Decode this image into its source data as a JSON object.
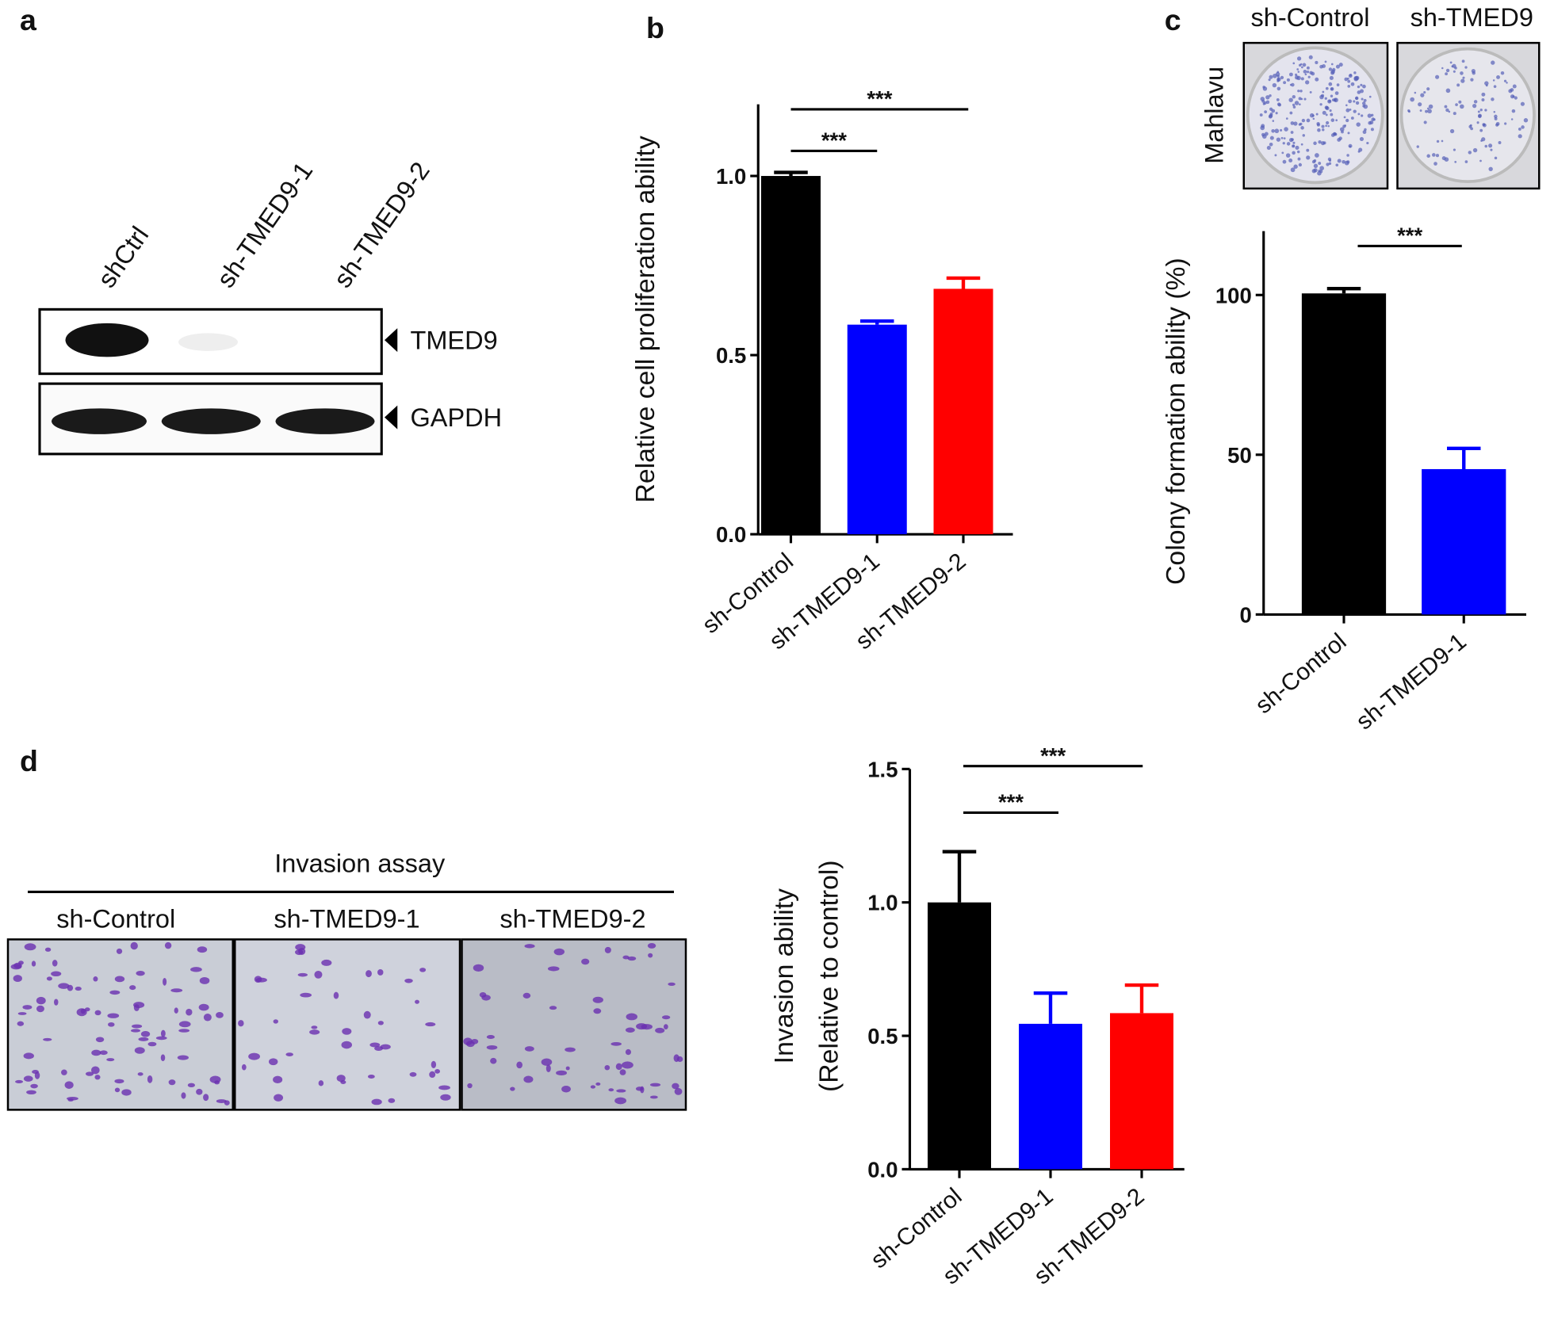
{
  "panel_labels": [
    "a",
    "b",
    "c",
    "d"
  ],
  "blot": {
    "lanes": [
      "shCtrl",
      "sh-TMED9-1",
      "sh-TMED9-2"
    ],
    "bands": [
      "TMED9",
      "GAPDH"
    ]
  },
  "colony": {
    "row_label": "Mahlavu",
    "columns": [
      "sh-Control",
      "sh-TMED9"
    ]
  },
  "invasion": {
    "title": "Invasion assay",
    "columns": [
      "sh-Control",
      "sh-TMED9-1",
      "sh-TMED9-2"
    ]
  },
  "chart_data": [
    {
      "type": "bar",
      "ylabel": [
        "Relative cell proliferation ability"
      ],
      "categories": [
        "sh-Control",
        "sh-TMED9-1",
        "sh-TMED9-2"
      ],
      "values": [
        1.0,
        0.585,
        0.685
      ],
      "errors": [
        0.01,
        0.01,
        0.03
      ],
      "colors": [
        "#000000",
        "#0000ff",
        "#ff0000"
      ],
      "ylim": [
        0,
        1.2
      ],
      "yticks": [
        {
          "value": 0,
          "label": "0.0"
        },
        {
          "value": 0.5,
          "label": "0.5"
        },
        {
          "value": 1,
          "label": "1.0"
        }
      ],
      "significance": [
        "***",
        "***"
      ]
    },
    {
      "type": "bar",
      "ylabel": [
        "Colony formation ability (%)"
      ],
      "categories": [
        "sh-Control",
        "sh-TMED9-1"
      ],
      "values": [
        100.5,
        45.5
      ],
      "errors": [
        1.5,
        6.5
      ],
      "colors": [
        "#000000",
        "#0000ff"
      ],
      "ylim": [
        0,
        120
      ],
      "yticks": [
        0,
        50,
        100
      ],
      "significance": [
        "***"
      ]
    },
    {
      "type": "bar",
      "ylabel": [
        "Invasion ability",
        "(Relative to control)"
      ],
      "categories": [
        "sh-Control",
        "sh-TMED9-1",
        "sh-TMED9-2"
      ],
      "values": [
        1.0,
        0.545,
        0.585
      ],
      "errors": [
        0.19,
        0.115,
        0.105
      ],
      "colors": [
        "#000000",
        "#0000ff",
        "#ff0000"
      ],
      "ylim": [
        0,
        1.5
      ],
      "yticks": [
        {
          "value": 0,
          "label": "0.0"
        },
        {
          "value": 0.5,
          "label": "0.5"
        },
        {
          "value": 1,
          "label": "1.0"
        },
        {
          "value": 1.5,
          "label": "1.5"
        }
      ],
      "significance": [
        "***",
        "***"
      ]
    }
  ]
}
